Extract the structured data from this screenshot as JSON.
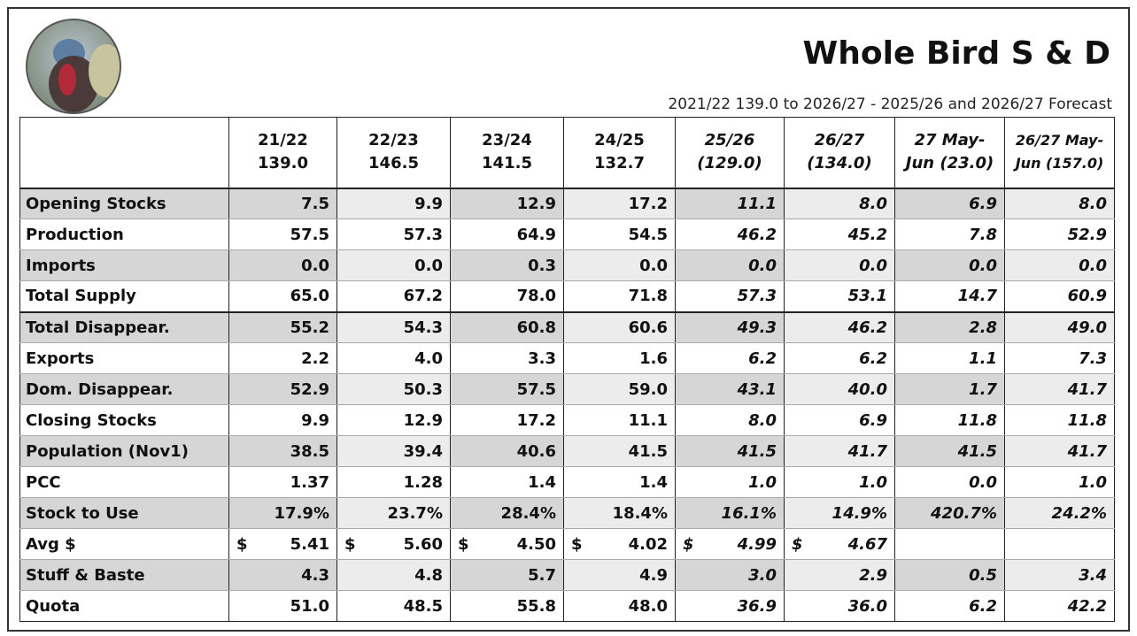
{
  "header": {
    "title": "Whole Bird S & D",
    "subtitle": "2021/22 139.0 to 2026/27 - 2025/26 and 2026/27 Forecast"
  },
  "table": {
    "columns": [
      {
        "line1": "21/22",
        "line2": "139.0"
      },
      {
        "line1": "22/23",
        "line2": "146.5"
      },
      {
        "line1": "23/24",
        "line2": "141.5"
      },
      {
        "line1": "24/25",
        "line2": "132.7"
      },
      {
        "line1": "25/26",
        "line2": "(129.0)"
      },
      {
        "line1": "26/27",
        "line2": "(134.0)"
      },
      {
        "line1": "27 May-",
        "line2": "Jun (23.0)"
      },
      {
        "line1": "26/27 May-",
        "line2": "Jun (157.0)"
      }
    ],
    "rows": [
      {
        "label": "Opening Stocks",
        "values": [
          "7.5",
          "9.9",
          "12.9",
          "17.2",
          "11.1",
          "8.0",
          "6.9",
          "8.0"
        ]
      },
      {
        "label": "Production",
        "values": [
          "57.5",
          "57.3",
          "64.9",
          "54.5",
          "46.2",
          "45.2",
          "7.8",
          "52.9"
        ]
      },
      {
        "label": "Imports",
        "values": [
          "0.0",
          "0.0",
          "0.3",
          "0.0",
          "0.0",
          "0.0",
          "0.0",
          "0.0"
        ]
      },
      {
        "label": "Total Supply",
        "values": [
          "65.0",
          "67.2",
          "78.0",
          "71.8",
          "57.3",
          "53.1",
          "14.7",
          "60.9"
        ]
      },
      {
        "label": "Total Disappear.",
        "values": [
          "55.2",
          "54.3",
          "60.8",
          "60.6",
          "49.3",
          "46.2",
          "2.8",
          "49.0"
        ]
      },
      {
        "label": "Exports",
        "values": [
          "2.2",
          "4.0",
          "3.3",
          "1.6",
          "6.2",
          "6.2",
          "1.1",
          "7.3"
        ]
      },
      {
        "label": "Dom. Disappear.",
        "values": [
          "52.9",
          "50.3",
          "57.5",
          "59.0",
          "43.1",
          "40.0",
          "1.7",
          "41.7"
        ]
      },
      {
        "label": "Closing Stocks",
        "values": [
          "9.9",
          "12.9",
          "17.2",
          "11.1",
          "8.0",
          "6.9",
          "11.8",
          "11.8"
        ]
      },
      {
        "label": "Population (Nov1)",
        "values": [
          "38.5",
          "39.4",
          "40.6",
          "41.5",
          "41.5",
          "41.7",
          "41.5",
          "41.7"
        ]
      },
      {
        "label": "PCC",
        "values": [
          "1.37",
          "1.28",
          "1.4",
          "1.4",
          "1.0",
          "1.0",
          "0.0",
          "1.0"
        ]
      },
      {
        "label": "Stock to Use",
        "values": [
          "17.9%",
          "23.7%",
          "28.4%",
          "18.4%",
          "16.1%",
          "14.9%",
          "420.7%",
          "24.2%"
        ]
      },
      {
        "label": "Avg $",
        "currency": "$",
        "values": [
          "5.41",
          "5.60",
          "4.50",
          "4.02",
          "4.99",
          "4.67"
        ]
      },
      {
        "label": "Stuff & Baste",
        "values": [
          "4.3",
          "4.8",
          "5.7",
          "4.9",
          "3.0",
          "2.9",
          "0.5",
          "3.4"
        ]
      },
      {
        "label": "Quota",
        "values": [
          "51.0",
          "48.5",
          "55.8",
          "48.0",
          "36.9",
          "36.0",
          "6.2",
          "42.2"
        ]
      }
    ]
  }
}
